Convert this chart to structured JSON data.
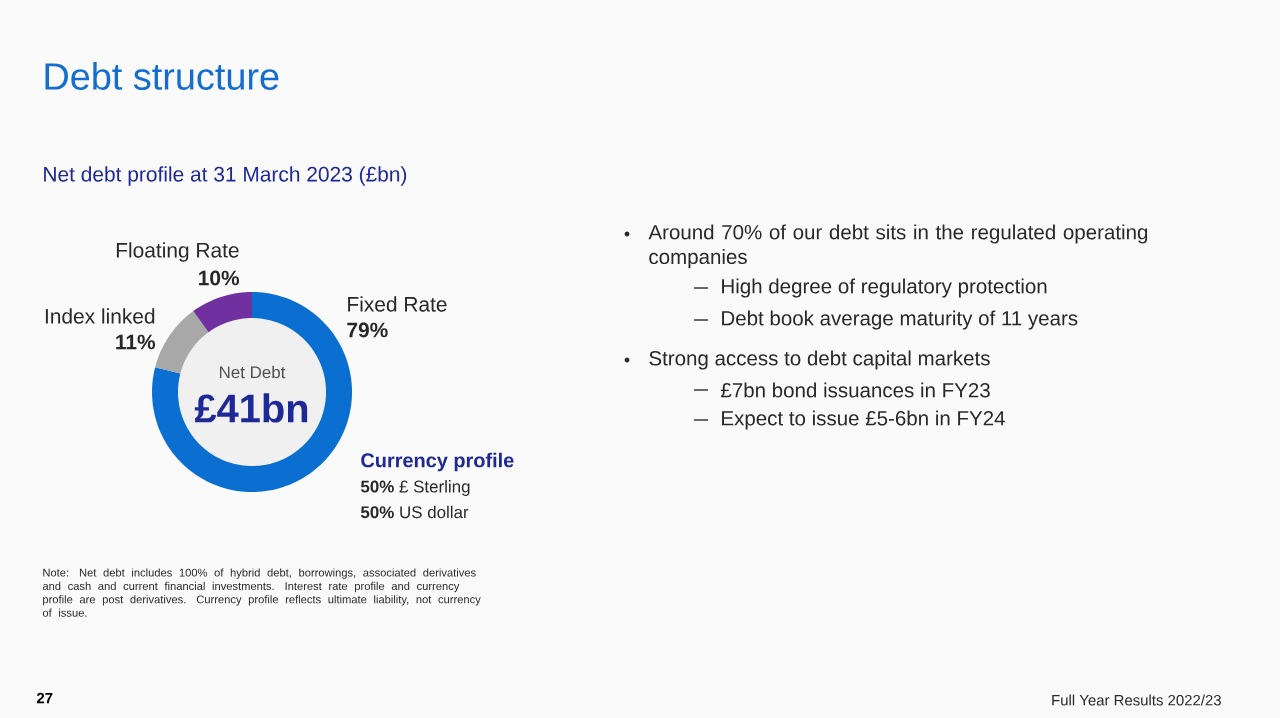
{
  "chart_data": {
    "type": "donut",
    "title": "Debt structure",
    "subtitle": "Net debt profile at 31 March 2023 (£bn)",
    "categories": [
      "Fixed Rate",
      "Index linked",
      "Floating Rate"
    ],
    "values": [
      79,
      11,
      10
    ],
    "value_labels": [
      "79%",
      "11%",
      "10%"
    ],
    "colors": [
      "#0a6fd0",
      "#a8a8a8",
      "#7030a0"
    ],
    "legend": false,
    "annotations": [
      "Net Debt",
      "£41bn",
      "Currency profile",
      "**50%** £ Sterling",
      "**50%** US dollar",
      "Around 70% of our debt sits in the regulated operating companies",
      "High degree of regulatory protection",
      "Debt book average maturity of 11 years",
      "Strong access to debt capital markets",
      "£7bn bond issuances in FY23",
      "Expect to issue £5-6bn in FY24",
      "Note: Net debt includes 100% of hybrid debt, borrowings, associated derivatives and cash and current financial investments. Interest rate profile and currency profile are post derivatives. Currency profile reflects ultimate liability, not currency of issue.",
      "27",
      "Full Year Results 2022/23"
    ]
  }
}
